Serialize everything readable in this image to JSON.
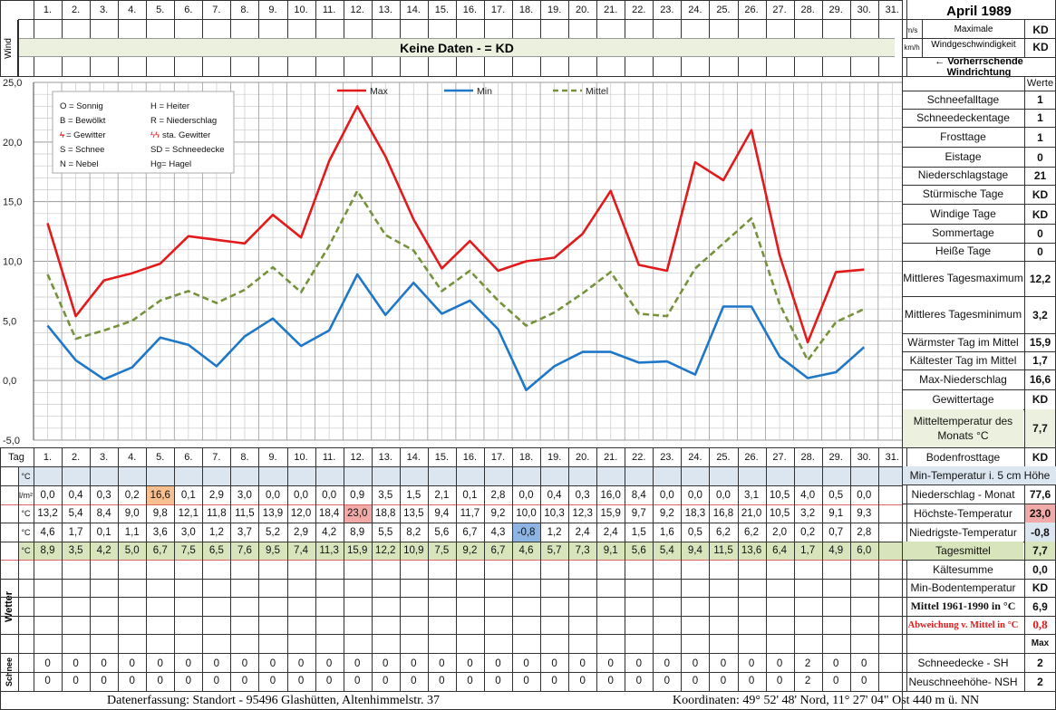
{
  "title": "April 1989",
  "units": {
    "ms": "m/s",
    "kmh": "km/h",
    "precip": "l/m²",
    "deg": "°C"
  },
  "wind": {
    "label": "Wind",
    "banner": "Keine Daten -  = KD",
    "max_label_1": "Maximale",
    "max_label_2": "Windgeschwindigkeit",
    "max_ms": "KD",
    "max_kmh": "KD",
    "direction_label": "← Vorherrschende Windrichtung"
  },
  "werte_header": "Werte",
  "days_header": [
    "1.",
    "2.",
    "3.",
    "4.",
    "5.",
    "6.",
    "7.",
    "8.",
    "9.",
    "10.",
    "11.",
    "12.",
    "13.",
    "14.",
    "15.",
    "16.",
    "17.",
    "18.",
    "19.",
    "20.",
    "21.",
    "22.",
    "23.",
    "24.",
    "25.",
    "26.",
    "27.",
    "28.",
    "29.",
    "30.",
    "31."
  ],
  "tag_label": "Tag",
  "legend_symbols": [
    {
      "left": "O = Sonnig",
      "right": "H = Heiter"
    },
    {
      "left": "B = Bewölkt",
      "right": "R = Niederschlag"
    },
    {
      "left": "= Gewitter",
      "right": "sta. Gewitter"
    },
    {
      "left": "S = Schnee",
      "right": "SD = Schneedecke"
    },
    {
      "left": "N = Nebel",
      "right": "Hg= Hagel"
    }
  ],
  "chart_data": {
    "type": "line",
    "categories": [
      "1.",
      "2.",
      "3.",
      "4.",
      "5.",
      "6.",
      "7.",
      "8.",
      "9.",
      "10.",
      "11.",
      "12.",
      "13.",
      "14.",
      "15.",
      "16.",
      "17.",
      "18.",
      "19.",
      "20.",
      "21.",
      "22.",
      "23.",
      "24.",
      "25.",
      "26.",
      "27.",
      "28.",
      "29.",
      "30."
    ],
    "series": [
      {
        "name": "Max",
        "color": "#e31a1c",
        "dash": false,
        "values": [
          13.2,
          5.4,
          8.4,
          9.0,
          9.8,
          12.1,
          11.8,
          11.5,
          13.9,
          12.0,
          18.4,
          23.0,
          18.8,
          13.5,
          9.4,
          11.7,
          9.2,
          10.0,
          10.3,
          12.3,
          15.9,
          9.7,
          9.2,
          18.3,
          16.8,
          21.0,
          10.5,
          3.2,
          9.1,
          9.3
        ]
      },
      {
        "name": "Min",
        "color": "#1f77c8",
        "dash": false,
        "values": [
          4.6,
          1.7,
          0.1,
          1.1,
          3.6,
          3.0,
          1.2,
          3.7,
          5.2,
          2.9,
          4.2,
          8.9,
          5.5,
          8.2,
          5.6,
          6.7,
          4.3,
          -0.8,
          1.2,
          2.4,
          2.4,
          1.5,
          1.6,
          0.5,
          6.2,
          6.2,
          2.0,
          0.2,
          0.7,
          2.8
        ]
      },
      {
        "name": "Mittel",
        "color": "#76923c",
        "dash": true,
        "values": [
          8.9,
          3.5,
          4.2,
          5.0,
          6.7,
          7.5,
          6.5,
          7.6,
          9.5,
          7.4,
          11.3,
          15.9,
          12.2,
          10.9,
          7.5,
          9.2,
          6.7,
          4.6,
          5.7,
          7.3,
          9.1,
          5.6,
          5.4,
          9.4,
          11.5,
          13.6,
          6.4,
          1.7,
          4.9,
          6.0
        ]
      }
    ],
    "y_ticks": [
      "25,0",
      "20,0",
      "15,0",
      "10,0",
      "5,0",
      "0,0",
      "-5,0"
    ],
    "ylim": [
      -5,
      25
    ],
    "grid": true,
    "legend_position": "top"
  },
  "table": {
    "precip": [
      "0,0",
      "0,4",
      "0,3",
      "0,2",
      "16,6",
      "0,1",
      "2,9",
      "3,0",
      "0,0",
      "0,0",
      "0,0",
      "0,9",
      "3,5",
      "1,5",
      "2,1",
      "0,1",
      "2,8",
      "0,0",
      "0,4",
      "0,3",
      "16,0",
      "8,4",
      "0,0",
      "0,0",
      "0,0",
      "3,1",
      "10,5",
      "4,0",
      "0,5",
      "0,0",
      ""
    ],
    "max": [
      "13,2",
      "5,4",
      "8,4",
      "9,0",
      "9,8",
      "12,1",
      "11,8",
      "11,5",
      "13,9",
      "12,0",
      "18,4",
      "23,0",
      "18,8",
      "13,5",
      "9,4",
      "11,7",
      "9,2",
      "10,0",
      "10,3",
      "12,3",
      "15,9",
      "9,7",
      "9,2",
      "18,3",
      "16,8",
      "21,0",
      "10,5",
      "3,2",
      "9,1",
      "9,3",
      ""
    ],
    "min": [
      "4,6",
      "1,7",
      "0,1",
      "1,1",
      "3,6",
      "3,0",
      "1,2",
      "3,7",
      "5,2",
      "2,9",
      "4,2",
      "8,9",
      "5,5",
      "8,2",
      "5,6",
      "6,7",
      "4,3",
      "-0,8",
      "1,2",
      "2,4",
      "2,4",
      "1,5",
      "1,6",
      "0,5",
      "6,2",
      "6,2",
      "2,0",
      "0,2",
      "0,7",
      "2,8",
      ""
    ],
    "mean": [
      "8,9",
      "3,5",
      "4,2",
      "5,0",
      "6,7",
      "7,5",
      "6,5",
      "7,6",
      "9,5",
      "7,4",
      "11,3",
      "15,9",
      "12,2",
      "10,9",
      "7,5",
      "9,2",
      "6,7",
      "4,6",
      "5,7",
      "7,3",
      "9,1",
      "5,6",
      "5,4",
      "9,4",
      "11,5",
      "13,6",
      "6,4",
      "1,7",
      "4,9",
      "6,0",
      ""
    ],
    "snow_sh": [
      "0",
      "0",
      "0",
      "0",
      "0",
      "0",
      "0",
      "0",
      "0",
      "0",
      "0",
      "0",
      "0",
      "0",
      "0",
      "0",
      "0",
      "0",
      "0",
      "0",
      "0",
      "0",
      "0",
      "0",
      "0",
      "0",
      "0",
      "2",
      "0",
      "0",
      ""
    ],
    "snow_nsh": [
      "0",
      "0",
      "0",
      "0",
      "0",
      "0",
      "0",
      "0",
      "0",
      "0",
      "0",
      "0",
      "0",
      "0",
      "0",
      "0",
      "0",
      "0",
      "0",
      "0",
      "0",
      "0",
      "0",
      "0",
      "0",
      "0",
      "0",
      "2",
      "0",
      "0",
      ""
    ],
    "wetter_label": "Wetter",
    "schnee_label": "Schnee"
  },
  "stats": [
    {
      "label": "Schneefalltage",
      "value": "1"
    },
    {
      "label": "Schneedeckentage",
      "value": "1"
    },
    {
      "label": "Frosttage",
      "value": "1"
    },
    {
      "label": "Eistage",
      "value": "0"
    },
    {
      "label": "Niederschlagstage",
      "value": "21"
    },
    {
      "label": "Stürmische Tage",
      "value": "KD"
    },
    {
      "label": "Windige Tage",
      "value": "KD"
    },
    {
      "label": "Sommertage",
      "value": "0"
    },
    {
      "label": "Heiße Tage",
      "value": "0"
    },
    {
      "label": "Mittleres Tagesmaximum",
      "value": "12,2"
    },
    {
      "label": "Mittleres Tagesminimum",
      "value": "3,2"
    },
    {
      "label": "Wärmster Tag im Mittel",
      "value": "15,9"
    },
    {
      "label": "Kältester Tag im Mittel",
      "value": "1,7"
    },
    {
      "label": "Max-Niederschlag",
      "value": "16,6"
    },
    {
      "label": "Gewittertage",
      "value": "KD"
    },
    {
      "label": "Mitteltemperatur des Monats °C",
      "value": "7,7"
    },
    {
      "label": "Bodenfrosttage",
      "value": "KD"
    }
  ],
  "lower_stats": [
    {
      "label": "Min-Temperatur i. 5 cm Höhe",
      "value": ""
    },
    {
      "label": "Niederschlag - Monat",
      "value": "77,6"
    },
    {
      "label": "Höchste-Temperatur",
      "value": "23,0"
    },
    {
      "label": "Niedrigste-Temperatur",
      "value": "-0,8"
    },
    {
      "label": "Tagesmittel",
      "value": "7,7"
    },
    {
      "label": "Kältesumme",
      "value": "0,0"
    },
    {
      "label": "Min-Bodentemperatur",
      "value": "KD"
    },
    {
      "label": "Mittel 1961-1990 in °C",
      "value": "6,9"
    },
    {
      "label": "Abweichung v. Mittel in °C",
      "value": "0,8"
    },
    {
      "label": "",
      "value": "Max"
    },
    {
      "label": "Schneedecke -   SH",
      "value": "2"
    },
    {
      "label": "Neuschneehöhe- NSH",
      "value": "2"
    }
  ],
  "footer": {
    "left": "Datenerfassung:  Standort -   95496  Glashütten, Altenhimmelstr. 37",
    "right": "Koordinaten:  49° 52' 48' Nord,  11° 27' 04\" Ost   440 m ü. NN"
  }
}
